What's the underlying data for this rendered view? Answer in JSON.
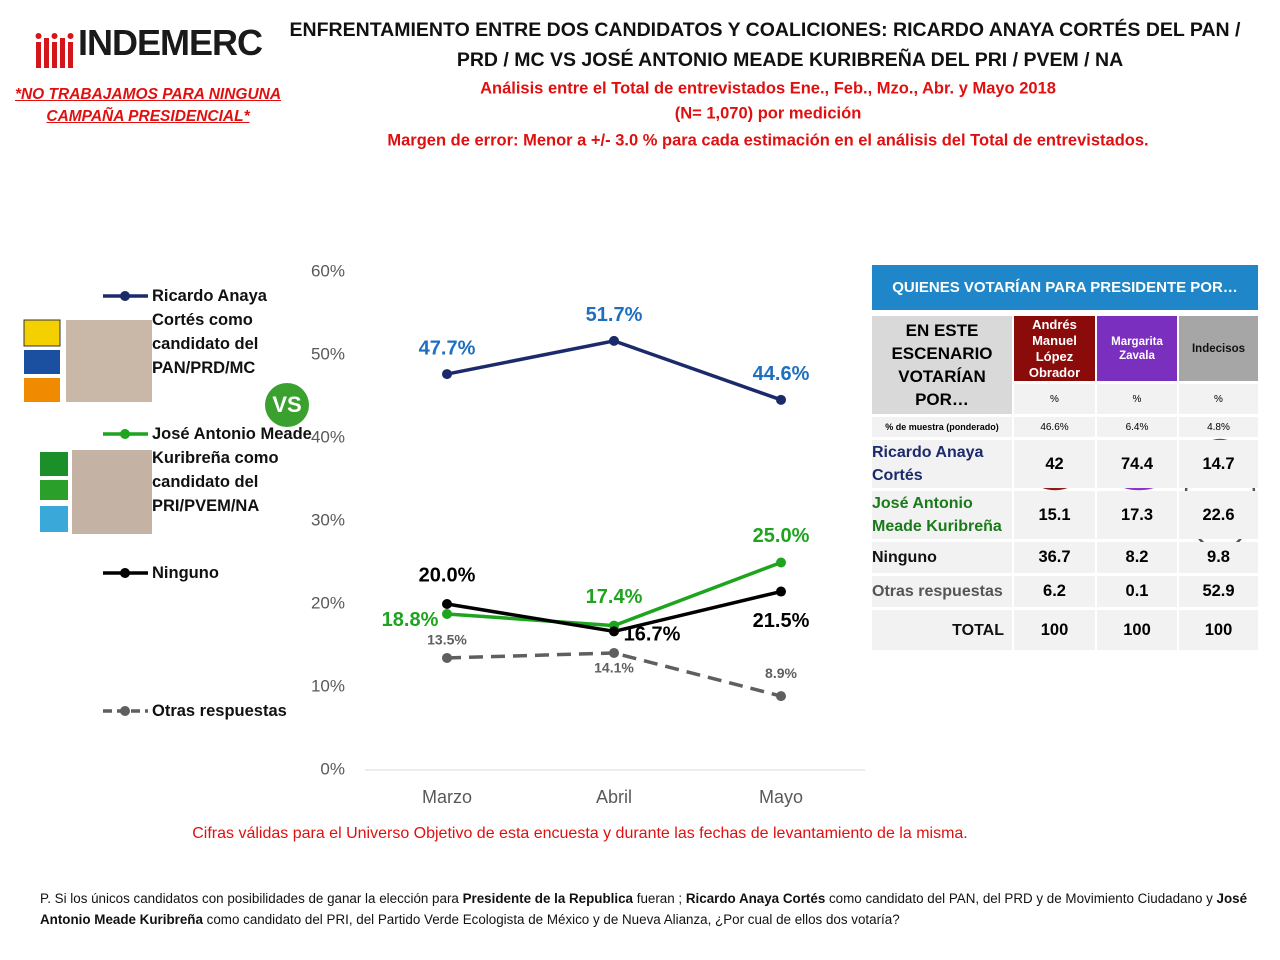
{
  "header": {
    "logo": "INDEMERC",
    "disclaimer": [
      "*NO TRABAJAMOS PARA NINGUNA",
      "CAMPAÑA PRESIDENCIAL*"
    ]
  },
  "chart_data": {
    "type": "line",
    "title": [
      "ENFRENTAMIENTO ENTRE DOS CANDIDATOS Y COALICIONES: RICARDO ANAYA CORTÉS DEL PAN /",
      "PRD / MC VS JOSÉ ANTONIO MEADE KURIBREÑA DEL PRI / PVEM / NA"
    ],
    "subtitle": [
      "Análisis entre el Total de entrevistados Ene., Feb., Mzo., Abr. y Mayo 2018",
      "(N= 1,070) por medición",
      "Margen de error: Menor a +/- 3.0 % para cada estimación en el análisis del Total de entrevistados."
    ],
    "annotation": "VS",
    "categories": [
      "Marzo",
      "Abril",
      "Mayo"
    ],
    "ylim": [
      0,
      60
    ],
    "yticks": [
      {
        "value": 0,
        "label": "0%"
      },
      {
        "value": 10,
        "label": "10%"
      },
      {
        "value": 20,
        "label": "20%"
      },
      {
        "value": 30,
        "label": "30%"
      },
      {
        "value": 40,
        "label": "40%"
      },
      {
        "value": 50,
        "label": "50%"
      },
      {
        "value": 60,
        "label": "60%"
      }
    ],
    "grid": false,
    "series": [
      {
        "name": "Ricardo Anaya Cortés como candidato del PAN/PRD/MC",
        "color": "#1b2a6b",
        "label_color": "#1f6fc0",
        "dash": false,
        "values": [
          47.7,
          51.7,
          44.6
        ],
        "value_labels": [
          "47.7%",
          "51.7%",
          "44.6%"
        ]
      },
      {
        "name": "José Antonio Meade Kuribreña como candidato del PRI/PVEM/NA",
        "color": "#1ea41e",
        "label_color": "#1ea41e",
        "dash": false,
        "values": [
          18.8,
          17.4,
          25.0
        ],
        "value_labels": [
          "18.8%",
          "17.4%",
          "25.0%"
        ]
      },
      {
        "name": "Ninguno",
        "color": "#000000",
        "label_color": "#000000",
        "dash": false,
        "values": [
          20.0,
          16.7,
          21.5
        ],
        "value_labels": [
          "20.0%",
          "16.7%",
          "21.5%"
        ]
      },
      {
        "name": "Otras respuestas",
        "color": "#5f5f5f",
        "label_color": "#5f5f5f",
        "dash": true,
        "values": [
          13.5,
          14.1,
          8.9
        ],
        "value_labels": [
          "13.5%",
          "14.1%",
          "8.9%"
        ]
      }
    ]
  },
  "table": {
    "title": "QUIENES VOTARÍAN PARA PRESIDENTE POR…",
    "corner": "EN ESTE ESCENARIO VOTARÍAN POR…",
    "columns": [
      "Andrés Manuel López Obrador",
      "Margarita Zavala",
      "Indecisos"
    ],
    "units": [
      "%",
      "%",
      "%"
    ],
    "sample_label": "% de muestra (ponderado)",
    "sample": [
      "46.6%",
      "6.4%",
      "4.8%"
    ],
    "rows": [
      [
        "Ricardo Anaya Cortés",
        "42",
        "74.4",
        "14.7"
      ],
      [
        "José Antonio Meade Kuribreña",
        "15.1",
        "17.3",
        "22.6"
      ],
      [
        "Ninguno",
        "36.7",
        "8.2",
        "9.8"
      ],
      [
        "Otras respuestas",
        "6.2",
        "0.1",
        "52.9"
      ],
      [
        "TOTAL",
        "100",
        "100",
        "100"
      ]
    ]
  },
  "footer": {
    "note": "Cifras válidas para el Universo Objetivo de esta encuesta y durante las fechas de levantamiento de la misma.",
    "question": [
      {
        "text": "P. Si los únicos candidatos con posibilidades de ganar la elección para ",
        "bold": false
      },
      {
        "text": "Presidente de la Republica",
        "bold": true
      },
      {
        "text": " fueran ; ",
        "bold": false
      },
      {
        "text": "Ricardo Anaya Cortés",
        "bold": true
      },
      {
        "text": " como candidato del PAN, del PRD y de Movimiento Ciudadano y ",
        "bold": false
      },
      {
        "text": "José Antonio Meade Kuribreña",
        "bold": true
      },
      {
        "text": " como candidato del PRI, del Partido Verde Ecologista de México y de Nueva Alianza, ¿Por cual de ellos dos votaría?",
        "bold": false
      }
    ]
  }
}
